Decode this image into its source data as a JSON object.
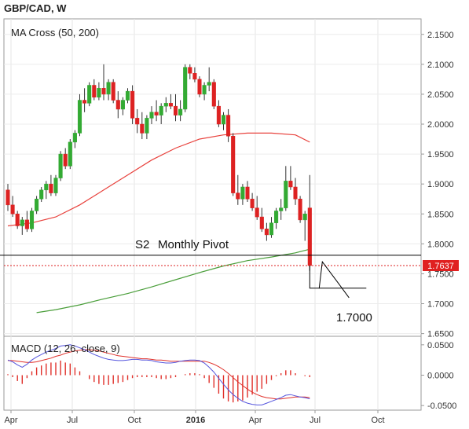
{
  "title": "GBP/CAD, W",
  "price_panel": {
    "label": "MA Cross (50, 200)",
    "s2_label": "S2",
    "pivot_label": "Monthly Pivot",
    "target_label": "1.7000",
    "last_price": "1.7637",
    "y_ticks": [
      "2.1500",
      "2.1000",
      "2.0500",
      "2.0000",
      "1.9500",
      "1.9000",
      "1.8500",
      "1.8000",
      "1.7500",
      "1.7000",
      "1.6500"
    ]
  },
  "macd_panel": {
    "label": "MACD (12, 26, close, 9)",
    "y_ticks": [
      "0.0500",
      "0.0000",
      "-0.0500"
    ]
  },
  "x_ticks": [
    "Apr",
    "Jul",
    "Oct",
    "2016",
    "Apr",
    "Jul",
    "Oct"
  ],
  "colors": {
    "up": "#33aa33",
    "down": "#dd2222",
    "ma50": "#e8413c",
    "ma200": "#4a9e3a",
    "macd": "#5555dd",
    "signal": "#e0302a",
    "pivot": "#000000",
    "last_price_bg": "#e02020"
  },
  "chart_data": [
    {
      "type": "candlestick",
      "title": "GBP/CAD, W",
      "subtitle": "MA Cross (50, 200)",
      "ylim": [
        1.645,
        2.165
      ],
      "pivot_level": 1.781,
      "last_price": 1.7637,
      "target": 1.7,
      "candles": [
        [
          1.89,
          1.9,
          1.855,
          1.865
        ],
        [
          1.865,
          1.88,
          1.845,
          1.85
        ],
        [
          1.85,
          1.855,
          1.825,
          1.83
        ],
        [
          1.83,
          1.845,
          1.815,
          1.84
        ],
        [
          1.84,
          1.855,
          1.82,
          1.825
        ],
        [
          1.825,
          1.86,
          1.82,
          1.855
        ],
        [
          1.855,
          1.88,
          1.85,
          1.875
        ],
        [
          1.875,
          1.895,
          1.87,
          1.89
        ],
        [
          1.89,
          1.905,
          1.875,
          1.9
        ],
        [
          1.9,
          1.915,
          1.88,
          1.885
        ],
        [
          1.885,
          1.915,
          1.88,
          1.91
        ],
        [
          1.91,
          1.955,
          1.905,
          1.95
        ],
        [
          1.95,
          1.96,
          1.925,
          1.93
        ],
        [
          1.93,
          1.975,
          1.925,
          1.97
        ],
        [
          1.97,
          1.99,
          1.96,
          1.985
        ],
        [
          1.985,
          2.05,
          1.98,
          2.04
        ],
        [
          2.04,
          2.06,
          2.02,
          2.035
        ],
        [
          2.035,
          2.07,
          2.03,
          2.065
        ],
        [
          2.065,
          2.075,
          2.04,
          2.045
        ],
        [
          2.045,
          2.07,
          2.04,
          2.06
        ],
        [
          2.06,
          2.1,
          2.04,
          2.05
        ],
        [
          2.05,
          2.075,
          2.04,
          2.07
        ],
        [
          2.07,
          2.075,
          2.035,
          2.04
        ],
        [
          2.04,
          2.055,
          2.01,
          2.025
        ],
        [
          2.025,
          2.045,
          2.015,
          2.04
        ],
        [
          2.04,
          2.06,
          2.035,
          2.055
        ],
        [
          2.055,
          2.065,
          2.0,
          2.01
        ],
        [
          2.01,
          2.025,
          1.985,
          2.0
        ],
        [
          2.0,
          2.02,
          1.975,
          1.985
        ],
        [
          1.985,
          2.015,
          1.975,
          2.01
        ],
        [
          2.01,
          2.03,
          2.0,
          2.02
        ],
        [
          2.02,
          2.04,
          2.005,
          2.015
        ],
        [
          2.015,
          2.035,
          2.0,
          2.03
        ],
        [
          2.03,
          2.045,
          2.02,
          2.035
        ],
        [
          2.035,
          2.05,
          2.025,
          2.03
        ],
        [
          2.03,
          2.05,
          2.005,
          2.015
        ],
        [
          2.015,
          2.04,
          2.005,
          2.025
        ],
        [
          2.025,
          2.1,
          2.02,
          2.095
        ],
        [
          2.095,
          2.1,
          2.075,
          2.085
        ],
        [
          2.085,
          2.095,
          2.07,
          2.075
        ],
        [
          2.075,
          2.08,
          2.045,
          2.05
        ],
        [
          2.05,
          2.07,
          2.04,
          2.065
        ],
        [
          2.065,
          2.095,
          2.055,
          2.07
        ],
        [
          2.07,
          2.075,
          2.025,
          2.03
        ],
        [
          2.03,
          2.04,
          1.995,
          2.0
        ],
        [
          2.0,
          2.02,
          1.99,
          2.015
        ],
        [
          2.015,
          2.025,
          1.97,
          1.98
        ],
        [
          1.98,
          1.985,
          1.88,
          1.885
        ],
        [
          1.885,
          1.915,
          1.865,
          1.875
        ],
        [
          1.875,
          1.9,
          1.865,
          1.895
        ],
        [
          1.895,
          1.905,
          1.87,
          1.875
        ],
        [
          1.875,
          1.885,
          1.855,
          1.86
        ],
        [
          1.86,
          1.88,
          1.84,
          1.845
        ],
        [
          1.845,
          1.86,
          1.82,
          1.825
        ],
        [
          1.825,
          1.835,
          1.805,
          1.815
        ],
        [
          1.815,
          1.845,
          1.81,
          1.835
        ],
        [
          1.835,
          1.86,
          1.825,
          1.855
        ],
        [
          1.855,
          1.875,
          1.84,
          1.86
        ],
        [
          1.86,
          1.93,
          1.855,
          1.905
        ],
        [
          1.905,
          1.93,
          1.89,
          1.895
        ],
        [
          1.895,
          1.91,
          1.865,
          1.875
        ],
        [
          1.875,
          1.88,
          1.835,
          1.84
        ],
        [
          1.84,
          1.855,
          1.805,
          1.85
        ],
        [
          1.86,
          1.915,
          1.755,
          1.7637
        ]
      ],
      "ma50": {
        "x": [
          0,
          5,
          10,
          15,
          20,
          25,
          30,
          35,
          40,
          45,
          50,
          55,
          60,
          63
        ],
        "y": [
          1.83,
          1.835,
          1.845,
          1.865,
          1.89,
          1.915,
          1.94,
          1.96,
          1.975,
          1.982,
          1.985,
          1.985,
          1.982,
          1.97
        ]
      },
      "ma200": {
        "x": [
          6,
          10,
          15,
          20,
          25,
          30,
          35,
          40,
          45,
          50,
          55,
          60,
          63
        ],
        "y": [
          1.685,
          1.69,
          1.698,
          1.708,
          1.717,
          1.728,
          1.74,
          1.752,
          1.763,
          1.772,
          1.778,
          1.785,
          1.791
        ]
      }
    },
    {
      "type": "line",
      "title": "MACD (12, 26, close, 9)",
      "ylim": [
        -0.055,
        0.055
      ],
      "macd": [
        0.025,
        0.022,
        0.017,
        0.013,
        0.018,
        0.025,
        0.03,
        0.034,
        0.038,
        0.041,
        0.044,
        0.048,
        0.049,
        0.05,
        0.048,
        0.045,
        0.042,
        0.038,
        0.034,
        0.031,
        0.028,
        0.026,
        0.025,
        0.024,
        0.024,
        0.025,
        0.026,
        0.026,
        0.025,
        0.025,
        0.024,
        0.022,
        0.021,
        0.02,
        0.02,
        0.021,
        0.023,
        0.024,
        0.025,
        0.025,
        0.024,
        0.02,
        0.013,
        0.005,
        -0.005,
        -0.015,
        -0.024,
        -0.032,
        -0.038,
        -0.043,
        -0.046,
        -0.048,
        -0.049,
        -0.049,
        -0.046,
        -0.043,
        -0.04,
        -0.037,
        -0.033,
        -0.032,
        -0.034,
        -0.036,
        -0.037,
        -0.039
      ],
      "signal": [
        0.024,
        0.024,
        0.023,
        0.022,
        0.021,
        0.021,
        0.022,
        0.024,
        0.026,
        0.028,
        0.031,
        0.033,
        0.036,
        0.038,
        0.04,
        0.041,
        0.042,
        0.042,
        0.041,
        0.04,
        0.038,
        0.036,
        0.034,
        0.032,
        0.031,
        0.03,
        0.029,
        0.028,
        0.027,
        0.027,
        0.026,
        0.025,
        0.025,
        0.024,
        0.023,
        0.023,
        0.023,
        0.023,
        0.023,
        0.023,
        0.023,
        0.023,
        0.021,
        0.018,
        0.014,
        0.009,
        0.003,
        -0.004,
        -0.011,
        -0.017,
        -0.023,
        -0.028,
        -0.032,
        -0.035,
        -0.037,
        -0.038,
        -0.039,
        -0.039,
        -0.038,
        -0.037,
        -0.036,
        -0.036,
        -0.036,
        -0.037
      ]
    }
  ]
}
